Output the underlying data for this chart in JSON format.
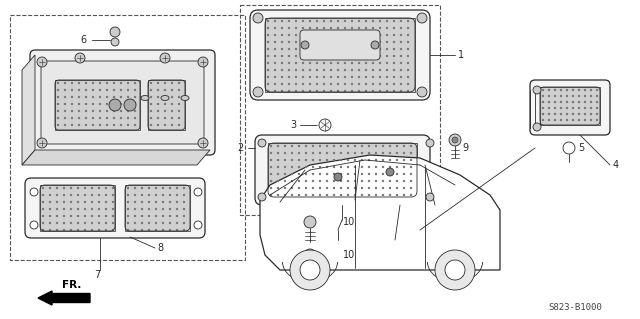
{
  "part_code": "S823-B1000",
  "bg_color": "#ffffff",
  "line_color": "#2a2a2a",
  "figsize": [
    6.4,
    3.19
  ],
  "dpi": 100,
  "img_gamma": 0.9
}
